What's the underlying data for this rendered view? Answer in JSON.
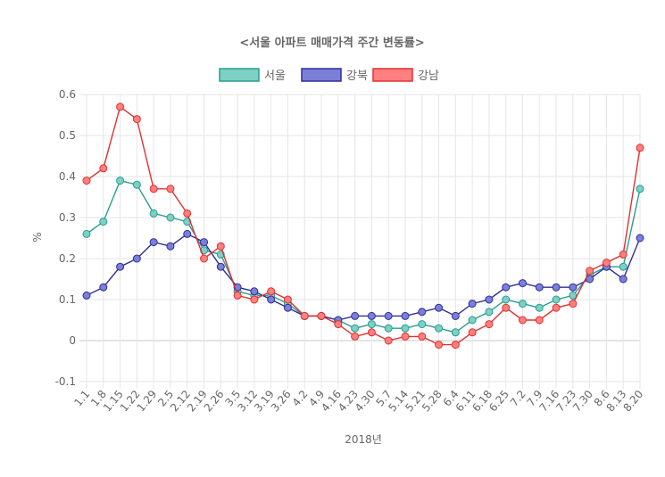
{
  "chart_data": {
    "type": "line",
    "title": "<서울 아파트 매매가격 주간 변동률>",
    "xlabel": "2018년",
    "ylabel": "%",
    "ylim": [
      -0.1,
      0.6
    ],
    "yticks": [
      "0.6",
      "0.5",
      "0.4",
      "0.3",
      "0.2",
      "0.1",
      "0",
      "-0.1"
    ],
    "grid": true,
    "legend_position": "top",
    "categories": [
      "1.1",
      "1.8",
      "1.15",
      "1.22",
      "1.29",
      "2.5",
      "2.12",
      "2.19",
      "2.26",
      "3.5",
      "3.12",
      "3.19",
      "3.26",
      "4.2",
      "4.9",
      "4.16",
      "4.23",
      "4.30",
      "5.7",
      "5.14",
      "5.21",
      "5.28",
      "6.4",
      "6.11",
      "6.18",
      "6.25",
      "7.2",
      "7.9",
      "7.16",
      "7.23",
      "7.30",
      "8.6",
      "8.13",
      "8.20"
    ],
    "series": [
      {
        "name": "서울",
        "color": "#2a9d8f",
        "fill": "#7ecfc4",
        "values": [
          0.26,
          0.29,
          0.39,
          0.38,
          0.31,
          0.3,
          0.29,
          0.22,
          0.21,
          0.12,
          0.11,
          0.11,
          0.09,
          0.06,
          0.06,
          0.05,
          0.03,
          0.04,
          0.03,
          0.03,
          0.04,
          0.03,
          0.02,
          0.05,
          0.07,
          0.1,
          0.09,
          0.08,
          0.1,
          0.11,
          0.16,
          0.18,
          0.18,
          0.37
        ]
      },
      {
        "name": "강북",
        "color": "#2e2f9a",
        "fill": "#7b7fd8",
        "values": [
          0.11,
          0.13,
          0.18,
          0.2,
          0.24,
          0.23,
          0.26,
          0.24,
          0.18,
          0.13,
          0.12,
          0.1,
          0.08,
          0.06,
          0.06,
          0.05,
          0.06,
          0.06,
          0.06,
          0.06,
          0.07,
          0.08,
          0.06,
          0.09,
          0.1,
          0.13,
          0.14,
          0.13,
          0.13,
          0.13,
          0.15,
          0.18,
          0.15,
          0.25
        ]
      },
      {
        "name": "강남",
        "color": "#e03131",
        "fill": "#ff7f7f",
        "values": [
          0.39,
          0.42,
          0.57,
          0.54,
          0.37,
          0.37,
          0.31,
          0.2,
          0.23,
          0.11,
          0.1,
          0.12,
          0.1,
          0.06,
          0.06,
          0.04,
          0.01,
          0.02,
          0.0,
          0.01,
          0.01,
          -0.01,
          -0.01,
          0.02,
          0.04,
          0.08,
          0.05,
          0.05,
          0.08,
          0.09,
          0.17,
          0.19,
          0.21,
          0.47
        ]
      }
    ]
  }
}
